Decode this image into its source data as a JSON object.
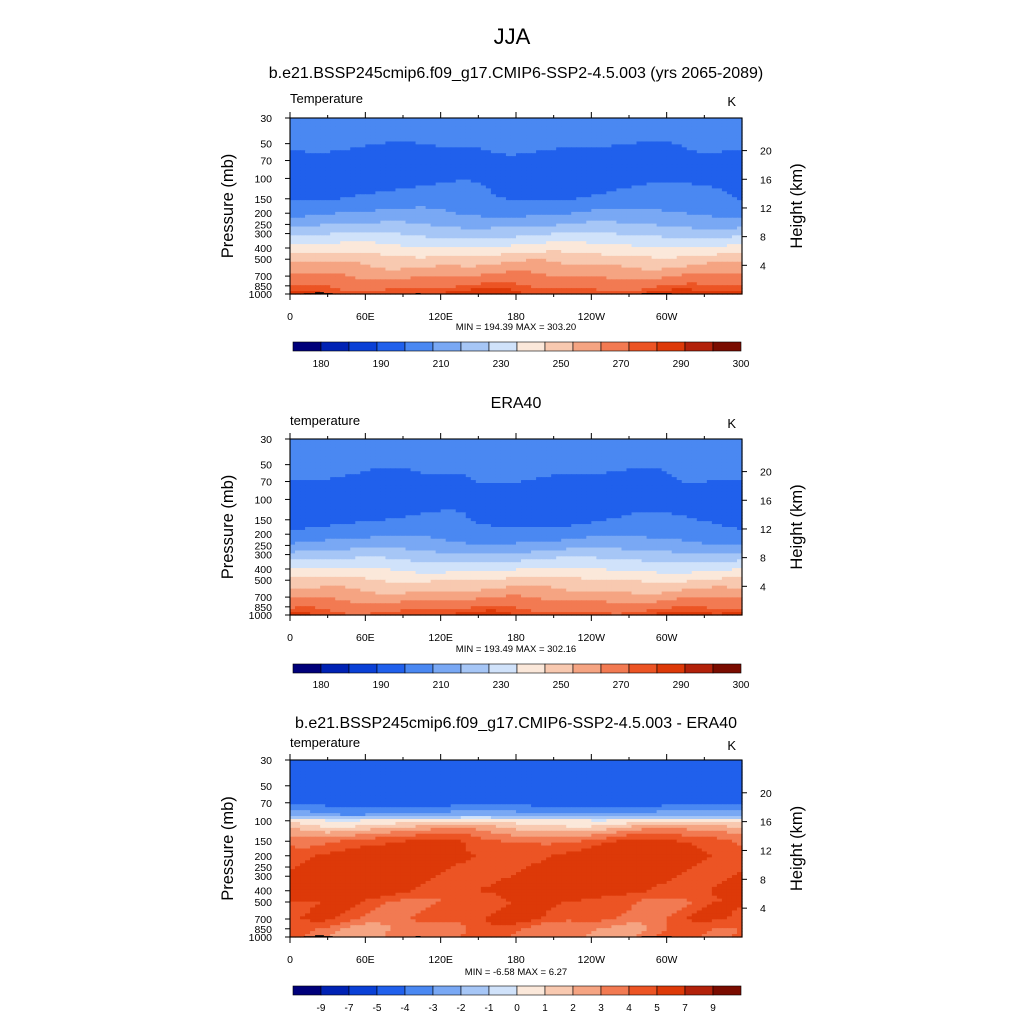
{
  "figure_title": "JJA",
  "chart_data": [
    {
      "type": "heatmap",
      "title": "b.e21.BSSP245cmip6.f09_g17.CMIP6-SSP2-4.5.003 (yrs 2065-2089)",
      "left_label": "Temperature",
      "units": "K",
      "ylabel": "Pressure (mb)",
      "ylabel_right": "Height (km)",
      "stats": "MIN = 194.39  MAX = 303.20",
      "min": 194.39,
      "max": 303.2,
      "x_ticks": [
        "0",
        "60E",
        "120E",
        "180",
        "120W",
        "60W"
      ],
      "y_ticks": [
        "30",
        "50",
        "70",
        "100",
        "150",
        "200",
        "250",
        "300",
        "400",
        "500",
        "700",
        "850",
        "1000"
      ],
      "height_ticks": [
        "20",
        "16",
        "12",
        "8",
        "4"
      ],
      "colorbar_labels": [
        "180",
        "190",
        "210",
        "230",
        "250",
        "270",
        "290",
        "300"
      ],
      "profile": [
        {
          "p": 30,
          "v": 216
        },
        {
          "p": 50,
          "v": 211
        },
        {
          "p": 70,
          "v": 207
        },
        {
          "p": 100,
          "v": 206
        },
        {
          "p": 150,
          "v": 212
        },
        {
          "p": 200,
          "v": 220
        },
        {
          "p": 250,
          "v": 229
        },
        {
          "p": 300,
          "v": 238
        },
        {
          "p": 400,
          "v": 253
        },
        {
          "p": 500,
          "v": 265
        },
        {
          "p": 700,
          "v": 280
        },
        {
          "p": 850,
          "v": 289
        },
        {
          "p": 1000,
          "v": 296
        }
      ],
      "zonal_variation": 3,
      "topography": true
    },
    {
      "type": "heatmap",
      "title": "ERA40",
      "left_label": "temperature",
      "units": "K",
      "ylabel": "Pressure (mb)",
      "ylabel_right": "Height (km)",
      "stats": "MIN = 193.49  MAX = 302.16",
      "min": 193.49,
      "max": 302.16,
      "x_ticks": [
        "0",
        "60E",
        "120E",
        "180",
        "120W",
        "60W"
      ],
      "y_ticks": [
        "30",
        "50",
        "70",
        "100",
        "150",
        "200",
        "250",
        "300",
        "400",
        "500",
        "700",
        "850",
        "1000"
      ],
      "height_ticks": [
        "20",
        "16",
        "12",
        "8",
        "4"
      ],
      "colorbar_labels": [
        "180",
        "190",
        "210",
        "230",
        "250",
        "270",
        "290",
        "300"
      ],
      "profile": [
        {
          "p": 30,
          "v": 218
        },
        {
          "p": 50,
          "v": 212
        },
        {
          "p": 70,
          "v": 209
        },
        {
          "p": 100,
          "v": 204
        },
        {
          "p": 150,
          "v": 209
        },
        {
          "p": 200,
          "v": 216
        },
        {
          "p": 250,
          "v": 224
        },
        {
          "p": 300,
          "v": 234
        },
        {
          "p": 400,
          "v": 249
        },
        {
          "p": 500,
          "v": 261
        },
        {
          "p": 700,
          "v": 277
        },
        {
          "p": 850,
          "v": 287
        },
        {
          "p": 1000,
          "v": 295
        }
      ],
      "zonal_variation": 3,
      "topography": false
    },
    {
      "type": "heatmap",
      "title": "b.e21.BSSP245cmip6.f09_g17.CMIP6-SSP2-4.5.003 - ERA40",
      "left_label": "temperature",
      "units": "K",
      "ylabel": "Pressure (mb)",
      "ylabel_right": "Height (km)",
      "stats": "MIN = -6.58  MAX =  6.27",
      "min": -6.58,
      "max": 6.27,
      "x_ticks": [
        "0",
        "60E",
        "120E",
        "180",
        "120W",
        "60W"
      ],
      "y_ticks": [
        "30",
        "50",
        "70",
        "100",
        "150",
        "200",
        "250",
        "300",
        "400",
        "500",
        "700",
        "850",
        "1000"
      ],
      "height_ticks": [
        "20",
        "16",
        "12",
        "8",
        "4"
      ],
      "colorbar_labels": [
        "-9",
        "-7",
        "-5",
        "-4",
        "-3",
        "-2",
        "-1",
        "0",
        "1",
        "2",
        "3",
        "4",
        "5",
        "7",
        "9"
      ],
      "profile": [
        {
          "p": 30,
          "v": -4.5
        },
        {
          "p": 50,
          "v": -4.5
        },
        {
          "p": 70,
          "v": -4.5
        },
        {
          "p": 90,
          "v": -2.5
        },
        {
          "p": 100,
          "v": 0.5
        },
        {
          "p": 120,
          "v": 2.5
        },
        {
          "p": 150,
          "v": 4.5
        },
        {
          "p": 200,
          "v": 5.5
        },
        {
          "p": 300,
          "v": 5.5
        },
        {
          "p": 400,
          "v": 5.5
        },
        {
          "p": 500,
          "v": 4.5
        },
        {
          "p": 700,
          "v": 4.5
        },
        {
          "p": 850,
          "v": 3.5
        },
        {
          "p": 1000,
          "v": 3.5
        }
      ],
      "zonal_variation": 0.8,
      "topography": true
    }
  ],
  "colorbar_colors": [
    "#00007a",
    "#0022b4",
    "#0a40d6",
    "#2060ec",
    "#4a88f2",
    "#79a8f4",
    "#a6c6f6",
    "#d0e2fa",
    "#fbe8da",
    "#f8c9b0",
    "#f5a482",
    "#f27a52",
    "#ec5424",
    "#dd3908",
    "#b2210a",
    "#7a0c00"
  ],
  "temperature_levels": [
    180,
    190,
    200,
    210,
    220,
    230,
    240,
    250,
    260,
    270,
    280,
    290,
    295,
    300,
    305
  ],
  "difference_levels": [
    -9,
    -7,
    -5,
    -4,
    -3,
    -2,
    -1,
    0,
    1,
    2,
    3,
    4,
    5,
    7,
    9
  ]
}
